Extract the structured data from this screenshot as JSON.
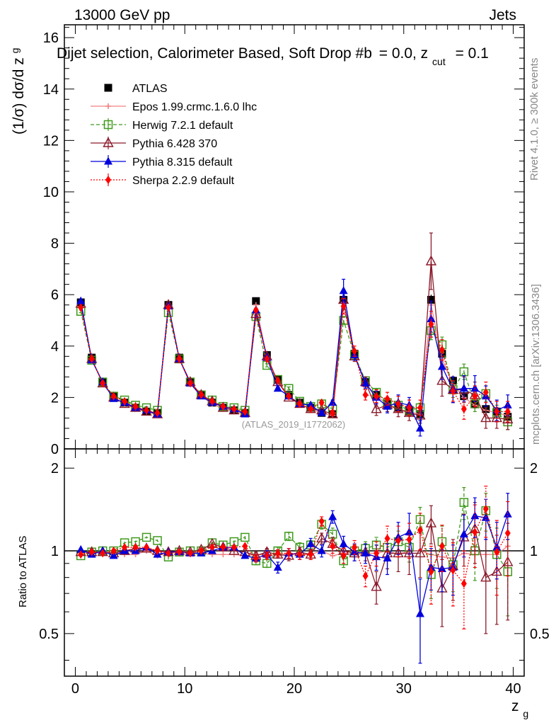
{
  "header": {
    "left": "13000 GeV pp",
    "right": "Jets"
  },
  "side_labels": {
    "rivet": "Rivet 4.1.0, ≥ 300k events",
    "mcplots": "mcplots.cern.ch [arXiv:1306.3436]"
  },
  "colors": {
    "ATLAS": "#000000",
    "Epos": "#f08080",
    "Herwig": "#3f9a1e",
    "Pythia6": "#8b1a2a",
    "Pythia8": "#0000dd",
    "Sherpa": "#ff0000"
  },
  "chart_data": [
    {
      "type": "scatter",
      "panel": "main",
      "title": "Dijet selection, Calorimeter Based, Soft Drop #b = 0.0, z_cut = 0.1",
      "title_main": "Dijet selection, Calorimeter Based, Soft Drop #b",
      "title_eq": "= 0.0, z",
      "title_sub": "cut",
      "title_end": "= 0.1",
      "ylabel": "(1/σ) dσ/d z_g",
      "ylabel_main": "(1/σ) dσ/d z",
      "ylabel_sub": "g",
      "xlabel_main": "z",
      "xlabel_sub": "g",
      "watermark": "(ATLAS_2019_I1772062)",
      "xlim": [
        -1,
        41
      ],
      "ylim": [
        0,
        16.5
      ],
      "yticks": [
        {
          "v": 0,
          "label": "0"
        },
        {
          "v": 2,
          "label": "2"
        },
        {
          "v": 4,
          "label": "4"
        },
        {
          "v": 6,
          "label": "6"
        },
        {
          "v": 8,
          "label": "8"
        },
        {
          "v": 10,
          "label": "10"
        },
        {
          "v": 12,
          "label": "12"
        },
        {
          "v": 14,
          "label": "14"
        },
        {
          "v": 16,
          "label": "16"
        }
      ],
      "x": [
        0.5,
        1.5,
        2.5,
        3.5,
        4.5,
        5.5,
        6.5,
        7.5,
        8.5,
        9.5,
        10.5,
        11.5,
        12.5,
        13.5,
        14.5,
        15.5,
        16.5,
        17.5,
        18.5,
        19.5,
        20.5,
        21.5,
        22.5,
        23.5,
        24.5,
        25.5,
        26.5,
        27.5,
        28.5,
        29.5,
        30.5,
        31.5,
        32.5,
        33.5,
        34.5,
        35.5,
        36.5,
        37.5,
        38.5,
        39.5
      ],
      "series": [
        {
          "name": "ATLAS",
          "key": "ATLAS",
          "marker": "square",
          "line": "none",
          "values": [
            5.7,
            3.55,
            2.6,
            2.05,
            1.8,
            1.6,
            1.45,
            1.4,
            5.6,
            3.55,
            2.6,
            2.1,
            1.8,
            1.6,
            1.5,
            1.4,
            5.75,
            3.65,
            2.7,
            2.1,
            1.8,
            1.6,
            1.4,
            1.35,
            5.8,
            3.7,
            2.6,
            2.1,
            1.75,
            1.6,
            1.45,
            1.35,
            5.8,
            3.7,
            2.65,
            2.05,
            1.75,
            1.55,
            1.45,
            1.25
          ],
          "errors": [
            0.1,
            0.08,
            0.06,
            0.05,
            0.05,
            0.05,
            0.05,
            0.05,
            0.1,
            0.08,
            0.06,
            0.05,
            0.05,
            0.05,
            0.05,
            0.05,
            0.1,
            0.08,
            0.07,
            0.06,
            0.06,
            0.06,
            0.06,
            0.06,
            0.15,
            0.1,
            0.1,
            0.1,
            0.1,
            0.1,
            0.1,
            0.12,
            0.2,
            0.2,
            0.2,
            0.2,
            0.2,
            0.2,
            0.2,
            0.2
          ]
        },
        {
          "name": "Epos 1.99.crmc.1.6.0 lhc",
          "key": "Epos",
          "marker": "cross",
          "line": "solid",
          "values": [
            5.65,
            3.5,
            2.55,
            2.0,
            1.75,
            1.55,
            1.45,
            1.35,
            5.55,
            3.5,
            2.55,
            2.05,
            1.75,
            1.55,
            1.45,
            1.35,
            5.6,
            3.55,
            2.6,
            2.05,
            1.75,
            1.55,
            1.4,
            1.3,
            5.7,
            3.6,
            2.55,
            2.05,
            1.75,
            1.55,
            1.45,
            1.35,
            5.6,
            3.5,
            2.5,
            2.0,
            1.7,
            1.5,
            1.4,
            1.3
          ]
        },
        {
          "name": "Herwig 7.2.1 default",
          "key": "Herwig",
          "marker": "open-square",
          "line": "dashed",
          "values": [
            5.35,
            3.45,
            2.6,
            2.05,
            1.9,
            1.7,
            1.6,
            1.5,
            5.3,
            3.5,
            2.6,
            2.1,
            1.9,
            1.65,
            1.6,
            1.5,
            5.15,
            3.25,
            2.7,
            2.35,
            1.85,
            1.65,
            1.75,
            1.55,
            5.0,
            3.65,
            2.65,
            2.2,
            1.8,
            1.7,
            1.5,
            1.6,
            4.6,
            4.05,
            2.3,
            3.0,
            1.75,
            2.15,
            1.4,
            1.05
          ],
          "errors": [
            0.05,
            0.04,
            0.04,
            0.04,
            0.04,
            0.04,
            0.04,
            0.04,
            0.06,
            0.05,
            0.04,
            0.04,
            0.04,
            0.04,
            0.04,
            0.04,
            0.07,
            0.06,
            0.06,
            0.06,
            0.06,
            0.07,
            0.07,
            0.08,
            0.12,
            0.1,
            0.1,
            0.12,
            0.12,
            0.15,
            0.15,
            0.18,
            0.35,
            0.3,
            0.3,
            0.3,
            0.3,
            0.3,
            0.3,
            0.3
          ]
        },
        {
          "name": "Pythia 6.428 370",
          "key": "Pythia6",
          "marker": "open-triangle",
          "line": "solid",
          "values": [
            5.65,
            3.5,
            2.55,
            2.0,
            1.75,
            1.6,
            1.45,
            1.35,
            5.6,
            3.5,
            2.6,
            2.1,
            1.85,
            1.6,
            1.5,
            1.4,
            5.25,
            3.6,
            2.6,
            2.0,
            1.75,
            1.55,
            1.5,
            1.35,
            5.8,
            3.6,
            2.6,
            1.55,
            1.7,
            1.55,
            1.4,
            1.3,
            7.3,
            2.65,
            2.3,
            2.3,
            2.1,
            1.2,
            1.2,
            1.15
          ],
          "errors": [
            0.04,
            0.04,
            0.04,
            0.04,
            0.04,
            0.04,
            0.04,
            0.04,
            0.05,
            0.05,
            0.04,
            0.04,
            0.04,
            0.04,
            0.04,
            0.04,
            0.07,
            0.06,
            0.06,
            0.06,
            0.06,
            0.07,
            0.07,
            0.08,
            0.25,
            0.2,
            0.2,
            0.25,
            0.25,
            0.3,
            0.3,
            0.3,
            1.1,
            0.6,
            0.5,
            0.5,
            0.5,
            0.4,
            0.4,
            0.4
          ]
        },
        {
          "name": "Pythia 8.315 default",
          "key": "Pythia8",
          "marker": "triangle",
          "line": "solid",
          "values": [
            5.75,
            3.45,
            2.6,
            1.95,
            1.8,
            1.6,
            1.5,
            1.35,
            5.55,
            3.5,
            2.55,
            2.05,
            1.8,
            1.65,
            1.55,
            1.35,
            5.4,
            3.55,
            2.35,
            2.05,
            1.75,
            1.7,
            1.4,
            1.8,
            6.15,
            3.65,
            2.55,
            2.0,
            1.65,
            1.8,
            1.7,
            0.8,
            5.05,
            3.2,
            2.3,
            2.35,
            2.35,
            2.05,
            1.5,
            1.7
          ],
          "errors": [
            0.04,
            0.04,
            0.04,
            0.04,
            0.04,
            0.04,
            0.04,
            0.04,
            0.05,
            0.05,
            0.04,
            0.04,
            0.04,
            0.04,
            0.04,
            0.04,
            0.07,
            0.06,
            0.06,
            0.06,
            0.06,
            0.07,
            0.07,
            0.1,
            0.45,
            0.2,
            0.2,
            0.25,
            0.25,
            0.3,
            0.3,
            0.3,
            0.7,
            0.5,
            0.5,
            0.5,
            0.5,
            0.4,
            0.4,
            0.4
          ]
        },
        {
          "name": "Sherpa 2.2.9 default",
          "key": "Sherpa",
          "marker": "diamond",
          "line": "dotted",
          "values": [
            5.5,
            3.5,
            2.55,
            2.05,
            1.85,
            1.65,
            1.5,
            1.4,
            5.5,
            3.5,
            2.55,
            2.1,
            1.85,
            1.65,
            1.55,
            1.45,
            5.4,
            3.5,
            2.65,
            2.05,
            1.75,
            1.55,
            1.8,
            1.4,
            5.55,
            3.8,
            2.1,
            2.05,
            1.95,
            1.75,
            1.6,
            1.6,
            4.85,
            3.85,
            2.25,
            1.55,
            2.05,
            2.2,
            1.45,
            1.45
          ],
          "errors": [
            0.04,
            0.04,
            0.04,
            0.04,
            0.04,
            0.04,
            0.04,
            0.04,
            0.05,
            0.05,
            0.04,
            0.04,
            0.04,
            0.04,
            0.04,
            0.04,
            0.07,
            0.06,
            0.06,
            0.06,
            0.06,
            0.07,
            0.07,
            0.1,
            0.3,
            0.2,
            0.2,
            0.25,
            0.25,
            0.3,
            0.3,
            0.3,
            0.5,
            0.4,
            0.4,
            0.4,
            0.4,
            0.4,
            0.4,
            0.4
          ]
        }
      ]
    },
    {
      "type": "scatter",
      "panel": "ratio",
      "ylabel": "Ratio to ATLAS",
      "xlim": [
        -1,
        41
      ],
      "ylim": [
        0.35,
        2.35
      ],
      "yticks": [
        {
          "v": 0.5,
          "label": "0.5"
        },
        {
          "v": 1,
          "label": "1"
        },
        {
          "v": 2,
          "label": "2"
        }
      ],
      "xticks": [
        {
          "v": 0,
          "label": "0"
        },
        {
          "v": 10,
          "label": "10"
        },
        {
          "v": 20,
          "label": "20"
        },
        {
          "v": 30,
          "label": "30"
        },
        {
          "v": 40,
          "label": "40"
        }
      ],
      "x": [
        0.5,
        1.5,
        2.5,
        3.5,
        4.5,
        5.5,
        6.5,
        7.5,
        8.5,
        9.5,
        10.5,
        11.5,
        12.5,
        13.5,
        14.5,
        15.5,
        16.5,
        17.5,
        18.5,
        19.5,
        20.5,
        21.5,
        22.5,
        23.5,
        24.5,
        25.5,
        26.5,
        27.5,
        28.5,
        29.5,
        30.5,
        31.5,
        32.5,
        33.5,
        34.5,
        35.5,
        36.5,
        37.5,
        38.5,
        39.5
      ],
      "series": [
        {
          "name": "Epos 1.99.crmc.1.6.0 lhc",
          "key": "Epos",
          "marker": "cross",
          "line": "solid",
          "values": [
            0.99,
            0.99,
            0.98,
            0.98,
            0.97,
            0.97,
            1.0,
            0.96,
            0.99,
            0.99,
            0.98,
            0.98,
            0.97,
            0.97,
            0.97,
            0.96,
            0.97,
            0.97,
            0.96,
            0.98,
            0.97,
            0.97,
            1.0,
            0.96,
            0.98,
            0.97,
            0.98,
            0.98,
            1.0,
            0.97,
            1.0,
            1.0,
            0.97,
            0.95,
            0.94,
            0.98,
            0.97,
            0.97,
            0.97,
            1.04
          ]
        },
        {
          "name": "Herwig 7.2.1 default",
          "key": "Herwig",
          "marker": "open-square",
          "line": "dashed",
          "values": [
            0.96,
            0.99,
            1.0,
            1.0,
            1.07,
            1.08,
            1.12,
            1.09,
            0.95,
            0.99,
            1.0,
            1.0,
            1.07,
            1.05,
            1.08,
            1.12,
            0.92,
            0.9,
            1.0,
            1.13,
            1.03,
            1.05,
            1.25,
            1.15,
            0.92,
            1.0,
            1.02,
            1.05,
            1.03,
            1.08,
            1.03,
            1.3,
            0.82,
            1.08,
            0.89,
            1.5,
            1.0,
            1.4,
            0.97,
            0.84
          ],
          "errors": [
            0.01,
            0.01,
            0.01,
            0.01,
            0.01,
            0.01,
            0.01,
            0.01,
            0.02,
            0.02,
            0.02,
            0.02,
            0.02,
            0.02,
            0.02,
            0.02,
            0.03,
            0.03,
            0.03,
            0.04,
            0.04,
            0.04,
            0.05,
            0.06,
            0.05,
            0.05,
            0.06,
            0.07,
            0.08,
            0.1,
            0.12,
            0.14,
            0.15,
            0.15,
            0.18,
            0.2,
            0.22,
            0.22,
            0.24,
            0.26
          ]
        },
        {
          "name": "Pythia 6.428 370",
          "key": "Pythia6",
          "marker": "open-triangle",
          "line": "solid",
          "values": [
            0.99,
            0.99,
            0.99,
            0.98,
            1.0,
            1.02,
            1.02,
            1.0,
            0.99,
            1.0,
            0.99,
            1.01,
            1.06,
            1.03,
            1.0,
            0.99,
            0.96,
            0.99,
            0.97,
            0.96,
            0.99,
            0.97,
            1.11,
            1.06,
            1.0,
            0.98,
            0.99,
            0.74,
            0.98,
            0.98,
            0.98,
            0.98,
            1.26,
            0.73,
            0.88,
            1.12,
            1.2,
            0.8,
            0.84,
            0.91
          ],
          "errors": [
            0.01,
            0.01,
            0.01,
            0.01,
            0.01,
            0.01,
            0.01,
            0.01,
            0.02,
            0.02,
            0.02,
            0.02,
            0.02,
            0.02,
            0.02,
            0.02,
            0.03,
            0.03,
            0.03,
            0.04,
            0.04,
            0.04,
            0.05,
            0.06,
            0.06,
            0.06,
            0.07,
            0.1,
            0.12,
            0.14,
            0.16,
            0.18,
            0.2,
            0.2,
            0.22,
            0.24,
            0.3,
            0.3,
            0.3,
            0.35
          ]
        },
        {
          "name": "Pythia 8.315 default",
          "key": "Pythia8",
          "marker": "triangle",
          "line": "solid",
          "values": [
            1.01,
            0.97,
            1.0,
            0.96,
            1.0,
            1.0,
            1.03,
            0.97,
            0.99,
            0.99,
            0.98,
            0.98,
            1.0,
            1.03,
            1.03,
            0.96,
            0.94,
            0.97,
            0.87,
            0.98,
            0.97,
            1.06,
            1.0,
            1.33,
            1.06,
            0.99,
            0.98,
            0.95,
            0.94,
            1.12,
            1.17,
            0.59,
            0.87,
            0.86,
            0.87,
            1.15,
            1.34,
            1.32,
            1.03,
            1.36
          ],
          "errors": [
            0.01,
            0.01,
            0.01,
            0.01,
            0.01,
            0.01,
            0.01,
            0.01,
            0.02,
            0.02,
            0.02,
            0.02,
            0.02,
            0.02,
            0.02,
            0.02,
            0.03,
            0.03,
            0.04,
            0.04,
            0.04,
            0.05,
            0.05,
            0.07,
            0.07,
            0.07,
            0.08,
            0.1,
            0.12,
            0.15,
            0.2,
            0.2,
            0.15,
            0.15,
            0.18,
            0.2,
            0.22,
            0.22,
            0.24,
            0.26
          ]
        },
        {
          "name": "Sherpa 2.2.9 default",
          "key": "Sherpa",
          "marker": "diamond",
          "line": "dotted",
          "values": [
            0.97,
            0.99,
            0.98,
            1.0,
            1.03,
            1.03,
            1.03,
            1.0,
            0.98,
            0.99,
            0.98,
            1.0,
            1.03,
            1.03,
            1.03,
            1.04,
            0.94,
            0.96,
            0.98,
            0.98,
            0.97,
            0.97,
            1.28,
            1.04,
            0.96,
            1.03,
            0.81,
            0.98,
            1.11,
            1.09,
            1.1,
            1.19,
            0.84,
            1.04,
            0.85,
            0.76,
            1.17,
            1.42,
            0.99,
            1.16
          ],
          "errors": [
            0.01,
            0.01,
            0.01,
            0.01,
            0.01,
            0.01,
            0.01,
            0.01,
            0.02,
            0.02,
            0.02,
            0.02,
            0.02,
            0.02,
            0.02,
            0.02,
            0.03,
            0.03,
            0.03,
            0.04,
            0.04,
            0.04,
            0.05,
            0.06,
            0.06,
            0.06,
            0.07,
            0.1,
            0.12,
            0.14,
            0.16,
            0.18,
            0.2,
            0.2,
            0.22,
            0.24,
            0.3,
            0.3,
            0.3,
            0.35
          ]
        }
      ]
    }
  ]
}
